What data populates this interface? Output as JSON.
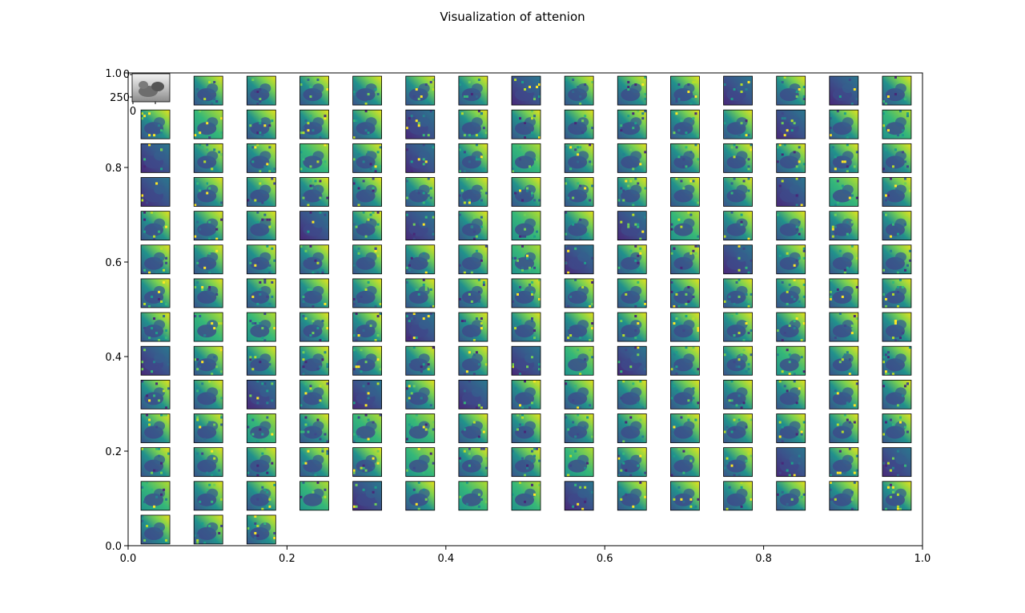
{
  "chart_data": {
    "type": "heatmap",
    "title": "Visualization of attenion",
    "xlabel": "",
    "ylabel": "",
    "xlim": [
      0.0,
      1.0
    ],
    "ylim": [
      0.0,
      1.0
    ],
    "x_ticks": [
      "0.0",
      "0.2",
      "0.4",
      "0.6",
      "0.8",
      "1.0"
    ],
    "y_ticks": [
      "0.0",
      "0.2",
      "0.4",
      "0.6",
      "0.8",
      "1.0"
    ],
    "grid": false,
    "tiles": {
      "rows": 14,
      "cols": 15,
      "count": 198,
      "first_tile": "original image",
      "colormap": "viridis",
      "inset_axis": {
        "x_ticks": [
          "0"
        ],
        "y_ticks": [
          "0",
          "250"
        ]
      }
    }
  },
  "colors": {
    "yellow": "#e8e11a",
    "green": "#5ec962",
    "teal": "#21918c",
    "blue": "#3b528b",
    "purple": "#482878",
    "dark": "#440154"
  }
}
